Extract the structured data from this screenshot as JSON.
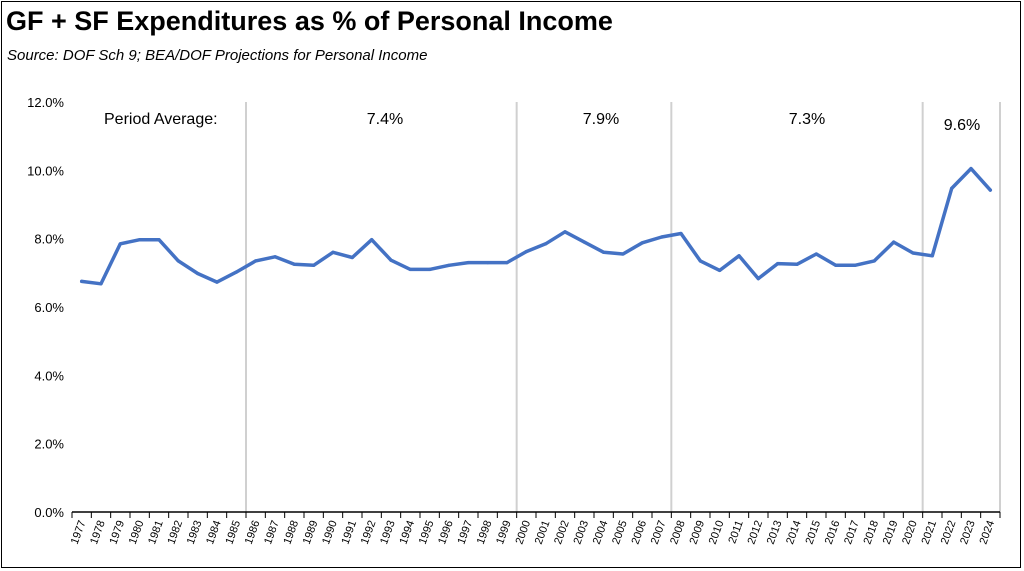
{
  "chart_data": {
    "type": "line",
    "title": "GF + SF Expenditures as % of Personal Income",
    "subtitle": "Source:  DOF Sch 9; BEA/DOF Projections for Personal Income",
    "xlabel": "",
    "ylabel": "",
    "ylim": [
      0,
      12
    ],
    "yticks": [
      "0.0%",
      "2.0%",
      "4.0%",
      "6.0%",
      "8.0%",
      "10.0%",
      "12.0%"
    ],
    "categories": [
      "1977",
      "1978",
      "1979",
      "1980",
      "1981",
      "1982",
      "1983",
      "1984",
      "1985",
      "1986",
      "1987",
      "1988",
      "1989",
      "1990",
      "1991",
      "1992",
      "1993",
      "1994",
      "1995",
      "1996",
      "1997",
      "1998",
      "1999",
      "2000",
      "2001",
      "2002",
      "2003",
      "2004",
      "2005",
      "2006",
      "2007",
      "2008",
      "2009",
      "2010",
      "2011",
      "2012",
      "2013",
      "2014",
      "2015",
      "2016",
      "2017",
      "2018",
      "2019",
      "2020",
      "2021",
      "2022",
      "2023",
      "2024"
    ],
    "series": [
      {
        "name": "",
        "color": "#4472C4",
        "values": [
          6.75,
          6.68,
          7.85,
          7.97,
          7.97,
          7.35,
          6.98,
          6.73,
          7.02,
          7.35,
          7.47,
          7.25,
          7.22,
          7.6,
          7.45,
          7.97,
          7.37,
          7.1,
          7.1,
          7.22,
          7.3,
          7.3,
          7.3,
          7.62,
          7.85,
          8.2,
          7.9,
          7.6,
          7.55,
          7.88,
          8.05,
          8.15,
          7.35,
          7.07,
          7.5,
          6.83,
          7.27,
          7.25,
          7.55,
          7.22,
          7.22,
          7.35,
          7.9,
          7.58,
          7.5,
          9.47,
          10.05,
          9.42
        ]
      }
    ],
    "period_dividers": [
      "1986",
      "2000",
      "2008",
      "2021"
    ],
    "annotations": {
      "label": "Period Average:",
      "averages": [
        "7.4%",
        "7.9%",
        "7.3%",
        "9.6%"
      ]
    },
    "grid": false,
    "legend": "none"
  }
}
